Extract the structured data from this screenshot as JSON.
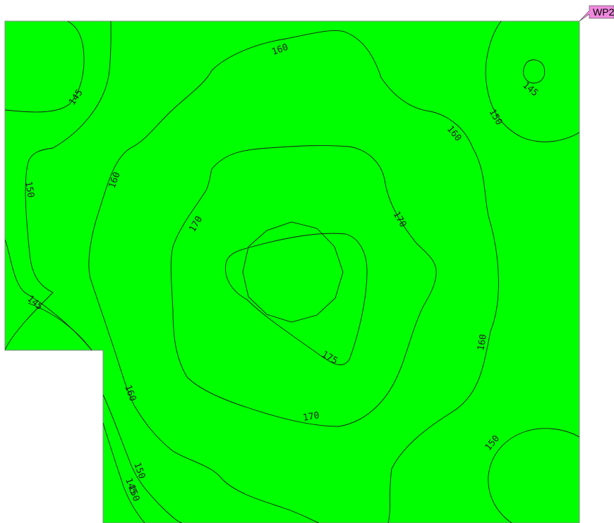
{
  "workplane_label": "WP2",
  "colors": {
    "plane_fill": "#00ff00",
    "plane_border": "#888888",
    "contour_stroke": "#1a1a1a",
    "label_box": "#ee88dd"
  },
  "contour_labels": [
    "145",
    "145",
    "150",
    "150",
    "160",
    "160",
    "170",
    "170",
    "175",
    "170",
    "160",
    "160",
    "145",
    "150",
    "150",
    "160",
    "150",
    "145"
  ]
}
